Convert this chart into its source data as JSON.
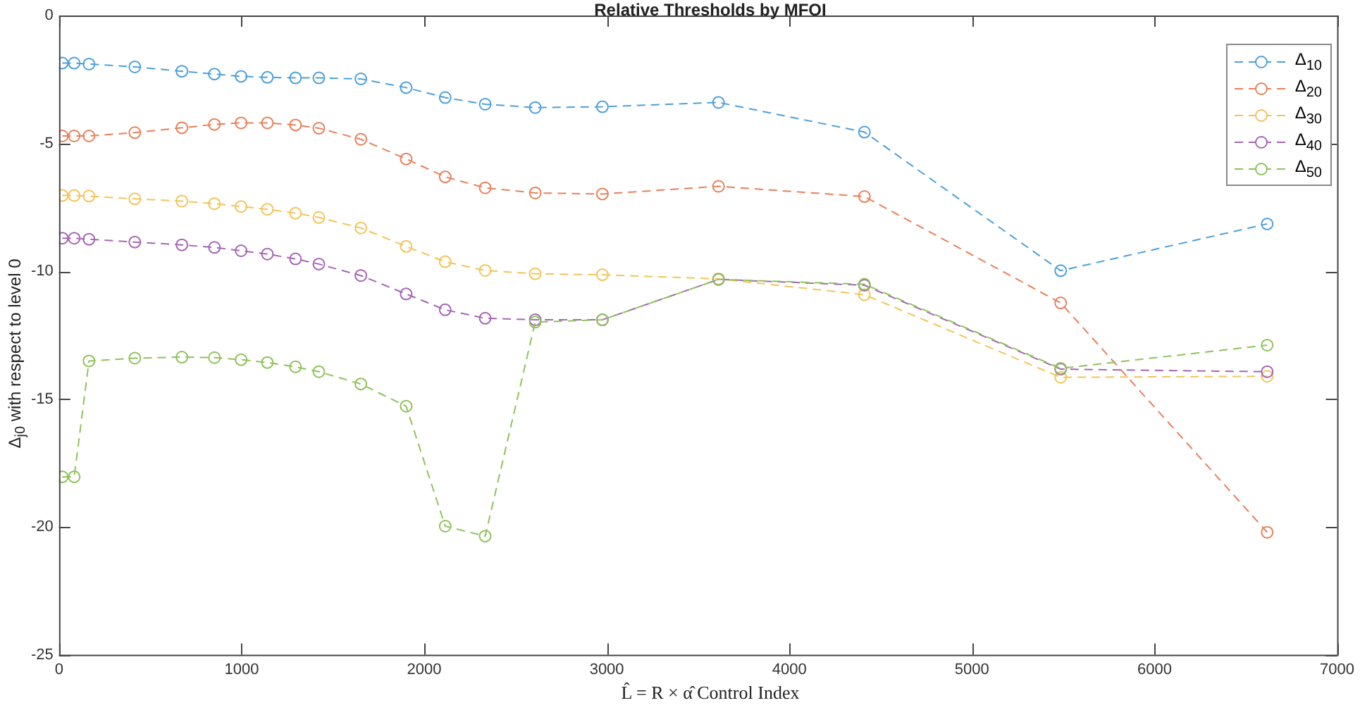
{
  "chart_data": {
    "type": "line",
    "title": "Relative Thresholds by MFOI",
    "xlabel": "L̂ = R × α̂ Control Index",
    "ylabel": "Δ$_{j0}$ with respect to level 0",
    "x": [
      18,
      83,
      164,
      415,
      673,
      851,
      997,
      1141,
      1295,
      1423,
      1653,
      1901,
      2115,
      2334,
      2608,
      2976,
      3612,
      4411,
      5486,
      6617
    ],
    "xlim": [
      0,
      7000
    ],
    "xticks": [
      0,
      1000,
      2000,
      3000,
      4000,
      5000,
      6000,
      7000
    ],
    "ylim": [
      -25,
      0
    ],
    "yticks": [
      -25,
      -20,
      -15,
      -10,
      -5,
      0
    ],
    "marker": "circle",
    "line_style": "dashed",
    "legend": "top right",
    "series": [
      {
        "name": "Δ$_{10}$",
        "color": "#4ca0dc",
        "values": [
          -1.86,
          -1.86,
          -1.9,
          -2.01,
          -2.18,
          -2.29,
          -2.38,
          -2.42,
          -2.44,
          -2.44,
          -2.48,
          -2.82,
          -3.21,
          -3.47,
          -3.6,
          -3.57,
          -3.4,
          -4.56,
          -9.98,
          -8.15
        ]
      },
      {
        "name": "Δ$_{20}$",
        "color": "#e9805a",
        "values": [
          -4.71,
          -4.71,
          -4.71,
          -4.58,
          -4.39,
          -4.26,
          -4.2,
          -4.2,
          -4.28,
          -4.41,
          -4.84,
          -5.61,
          -6.31,
          -6.74,
          -6.94,
          -6.98,
          -6.68,
          -7.08,
          -11.24,
          -20.21
        ]
      },
      {
        "name": "Δ$_{30}$",
        "color": "#f2c45a",
        "values": [
          -7.04,
          -7.04,
          -7.06,
          -7.17,
          -7.26,
          -7.36,
          -7.47,
          -7.58,
          -7.73,
          -7.9,
          -8.31,
          -9.03,
          -9.63,
          -9.97,
          -10.1,
          -10.14,
          -10.3,
          -10.92,
          -14.15,
          -14.11
        ]
      },
      {
        "name": "Δ$_{40}$",
        "color": "#a566b5",
        "values": [
          -8.71,
          -8.71,
          -8.75,
          -8.86,
          -8.97,
          -9.07,
          -9.2,
          -9.33,
          -9.52,
          -9.72,
          -10.17,
          -10.89,
          -11.51,
          -11.84,
          -11.9,
          -11.9,
          -10.32,
          -10.55,
          -13.83,
          -13.93
        ]
      },
      {
        "name": "Δ$_{50}$",
        "color": "#8fc25a",
        "values": [
          -18.04,
          -18.04,
          -13.51,
          -13.4,
          -13.36,
          -13.38,
          -13.46,
          -13.57,
          -13.74,
          -13.93,
          -14.41,
          -15.28,
          -19.97,
          -20.36,
          -11.99,
          -11.9,
          -10.32,
          -10.51,
          -13.8,
          -12.89
        ]
      }
    ]
  }
}
